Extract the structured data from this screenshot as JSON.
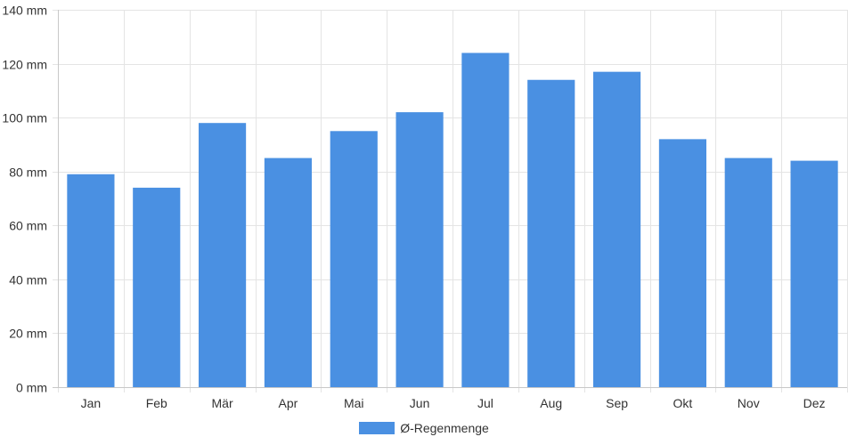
{
  "chart_data": {
    "type": "bar",
    "categories": [
      "Jan",
      "Feb",
      "Mär",
      "Apr",
      "Mai",
      "Jun",
      "Jul",
      "Aug",
      "Sep",
      "Okt",
      "Nov",
      "Dez"
    ],
    "series": [
      {
        "name": "Ø-Regenmenge",
        "values": [
          79,
          74,
          98,
          85,
          95,
          102,
          124,
          114,
          117,
          92,
          85,
          84
        ],
        "color": "#4a90e2"
      }
    ],
    "ylim": [
      0,
      140
    ],
    "yticks": [
      {
        "value": 0,
        "label": "0 mm"
      },
      {
        "value": 20,
        "label": "20 mm"
      },
      {
        "value": 40,
        "label": "40 mm"
      },
      {
        "value": 60,
        "label": "60 mm"
      },
      {
        "value": 80,
        "label": "80 mm"
      },
      {
        "value": 100,
        "label": "100 mm"
      },
      {
        "value": 120,
        "label": "120 mm"
      },
      {
        "value": 140,
        "label": "140 mm"
      }
    ],
    "grid": true,
    "legend_position": "bottom"
  }
}
